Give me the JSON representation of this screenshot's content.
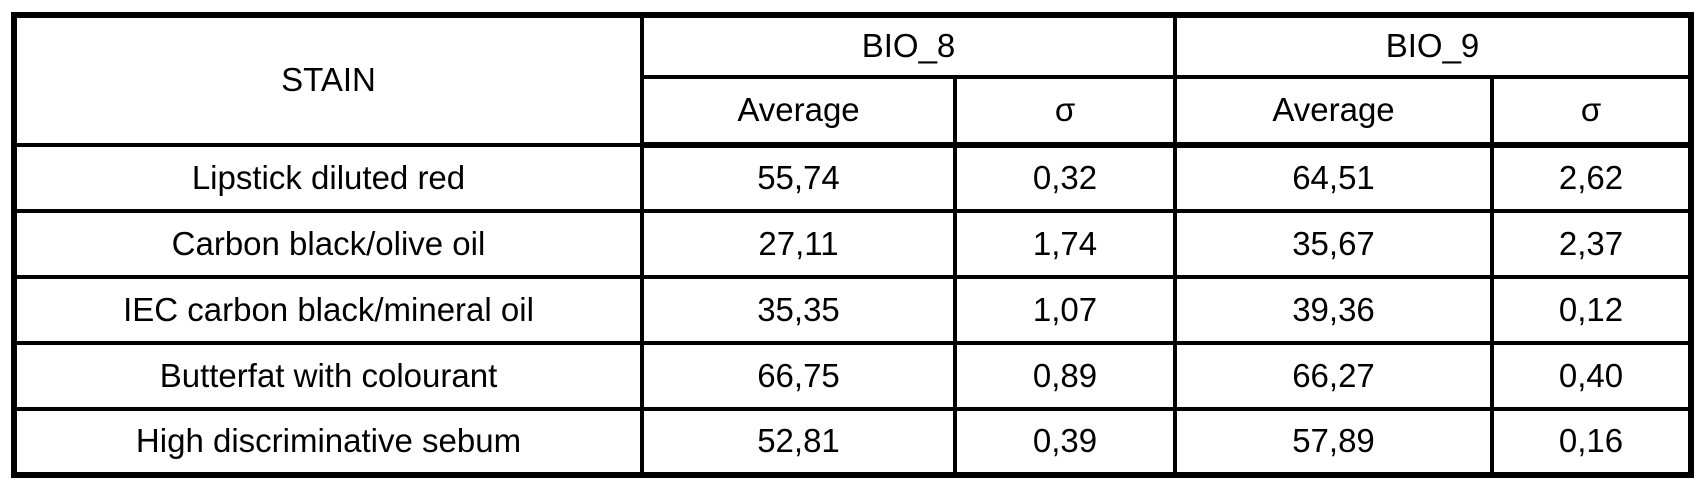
{
  "table": {
    "stain_header": "STAIN",
    "groups": [
      {
        "label": "BIO_8"
      },
      {
        "label": "BIO_9"
      }
    ],
    "sub_headers": {
      "average": "Average",
      "sigma": "σ"
    },
    "rows": [
      {
        "stain": "Lipstick diluted red",
        "bio8_avg": "55,74",
        "bio8_sigma": "0,32",
        "bio9_avg": "64,51",
        "bio9_sigma": "2,62"
      },
      {
        "stain": "Carbon black/olive oil",
        "bio8_avg": "27,11",
        "bio8_sigma": "1,74",
        "bio9_avg": "35,67",
        "bio9_sigma": "2,37"
      },
      {
        "stain": "IEC carbon black/mineral oil",
        "bio8_avg": "35,35",
        "bio8_sigma": "1,07",
        "bio9_avg": "39,36",
        "bio9_sigma": "0,12"
      },
      {
        "stain": "Butterfat with colourant",
        "bio8_avg": "66,75",
        "bio8_sigma": "0,89",
        "bio9_avg": "66,27",
        "bio9_sigma": "0,40"
      },
      {
        "stain": "High discriminative sebum",
        "bio8_avg": "52,81",
        "bio8_sigma": "0,39",
        "bio9_avg": "57,89",
        "bio9_sigma": "0,16"
      }
    ]
  },
  "colors": {
    "border": "#000000",
    "background": "#ffffff",
    "text": "#000000"
  }
}
